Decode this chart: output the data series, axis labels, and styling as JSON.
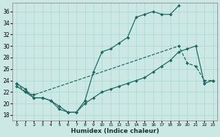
{
  "xlabel": "Humidex (Indice chaleur)",
  "bg_color": "#cce8e4",
  "grid_color": "#aad4ce",
  "line_color": "#1a6860",
  "xlim": [
    -0.5,
    23.5
  ],
  "ylim": [
    17,
    37.5
  ],
  "yticks": [
    18,
    20,
    22,
    24,
    26,
    28,
    30,
    32,
    34,
    36
  ],
  "xticks": [
    0,
    1,
    2,
    3,
    4,
    5,
    6,
    7,
    8,
    9,
    10,
    11,
    12,
    13,
    14,
    15,
    16,
    17,
    18,
    19,
    20,
    21,
    22,
    23
  ],
  "curve1_x": [
    0,
    1,
    2,
    3,
    4,
    5,
    6,
    7,
    8,
    9,
    10,
    11,
    12,
    13,
    14,
    15,
    16,
    17,
    18,
    19
  ],
  "curve1_y": [
    23.5,
    22.5,
    21.0,
    21.0,
    20.5,
    19.0,
    18.5,
    18.5,
    20.5,
    25.5,
    29.0,
    29.5,
    30.5,
    31.5,
    35.0,
    35.5,
    36.0,
    35.5,
    35.5,
    37.0
  ],
  "curve2_x": [
    0,
    1,
    2,
    3,
    4,
    5,
    6,
    7,
    8,
    9,
    10,
    11,
    12,
    13,
    14,
    15,
    16,
    17,
    18,
    19,
    20,
    21,
    22,
    23
  ],
  "curve2_y": [
    23.0,
    22.0,
    21.0,
    21.0,
    20.5,
    19.5,
    18.5,
    18.5,
    20.0,
    21.0,
    22.0,
    22.5,
    23.0,
    23.5,
    24.0,
    24.5,
    25.5,
    26.5,
    27.5,
    29.0,
    29.5,
    30.0,
    23.5,
    24.0
  ],
  "curve3_x": [
    0,
    1,
    2,
    19,
    20,
    21,
    22,
    23
  ],
  "curve3_y": [
    23.5,
    22.0,
    21.5,
    30.0,
    27.0,
    26.5,
    24.0,
    24.0
  ]
}
